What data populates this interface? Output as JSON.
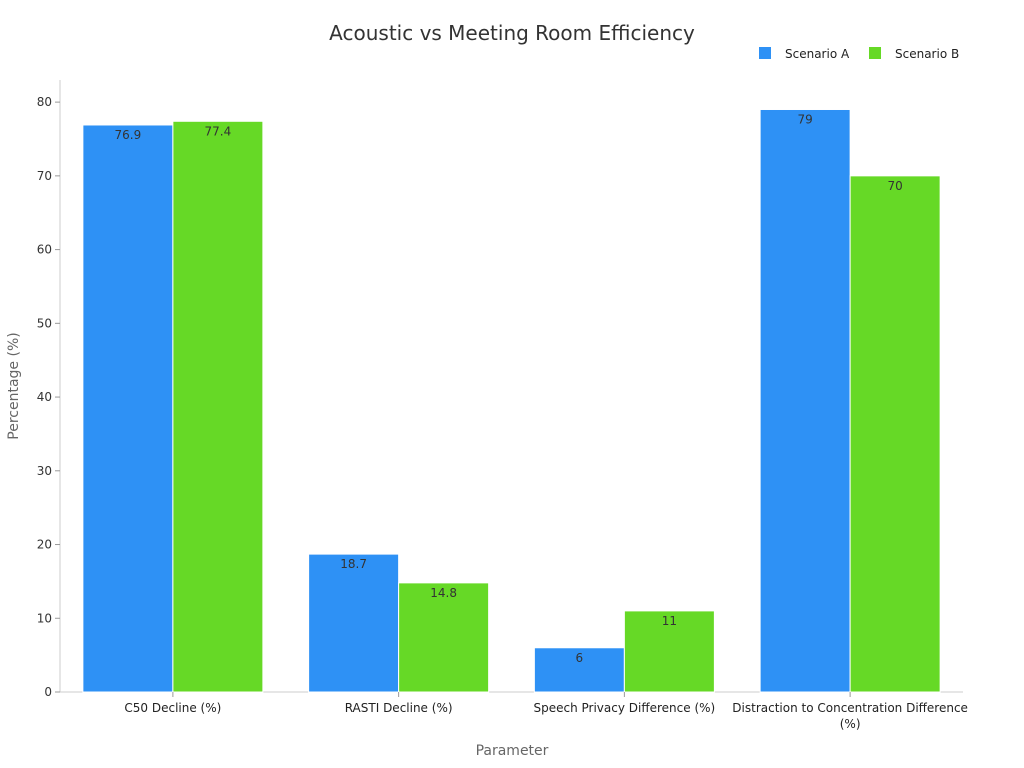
{
  "chart_data": {
    "type": "bar",
    "title": "Acoustic vs Meeting Room Efficiency",
    "xlabel": "Parameter",
    "ylabel": "Percentage (%)",
    "categories": [
      "C50 Decline (%)",
      "RASTI Decline (%)",
      "Speech Privacy Difference (%)",
      "Distraction to Concentration Difference (%)"
    ],
    "series": [
      {
        "name": "Scenario A",
        "values": [
          76.9,
          18.7,
          6,
          79
        ],
        "color": "#2e91f5"
      },
      {
        "name": "Scenario B",
        "values": [
          77.4,
          14.8,
          11,
          70
        ],
        "color": "#66d926"
      }
    ],
    "ylim": [
      0,
      83
    ],
    "yticks": [
      0,
      10,
      20,
      30,
      40,
      50,
      60,
      70,
      80
    ],
    "grid": false,
    "legend_position": "top-right"
  }
}
